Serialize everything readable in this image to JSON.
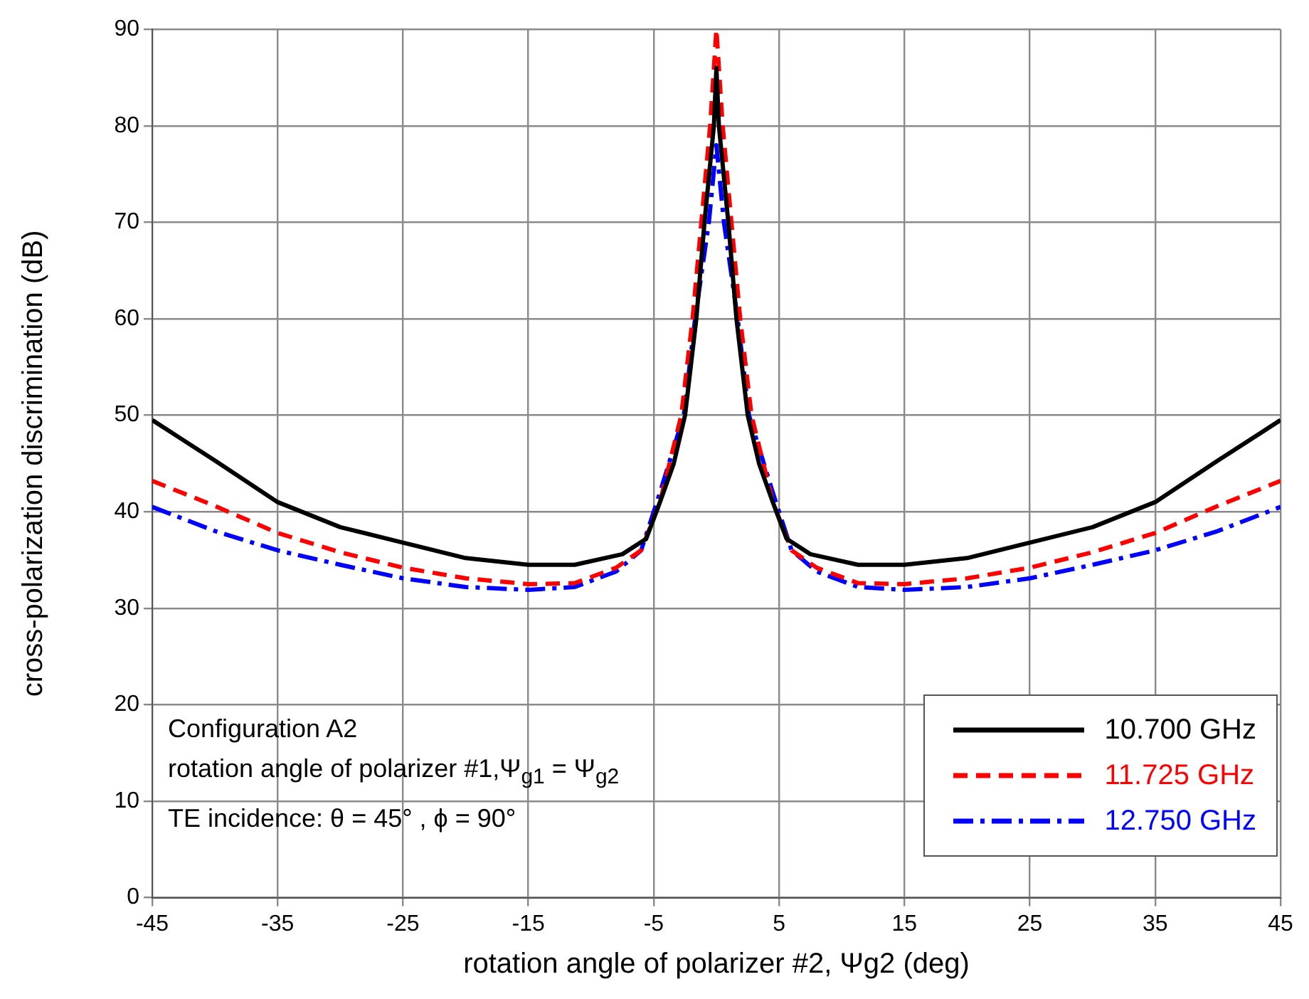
{
  "chart_data": {
    "type": "line",
    "xlabel": "rotation angle of polarizer #2, Ψg2 (deg)",
    "ylabel": "cross-polarization discrimination (dB)",
    "xlim": [
      -45,
      45
    ],
    "xticks": [
      -45,
      -35,
      -25,
      -15,
      -5,
      5,
      15,
      25,
      35,
      45
    ],
    "ylim": [
      0,
      90
    ],
    "yticks": [
      0,
      10,
      20,
      30,
      40,
      50,
      60,
      70,
      80,
      90
    ],
    "grid": true,
    "legend": "bottom right",
    "marker": "none",
    "annotations": [
      "Configuration A2",
      "rotation angle of polarizer #1,Ψ$_{g1}$ = Ψ$_{g2}$",
      "TE incidence: θ = 45° , ϕ = 90°"
    ],
    "series": [
      {
        "name": "10.700 GHz",
        "color": "#000000",
        "line_style": "solid",
        "x": [
          -45,
          -40,
          -35,
          -30,
          -25,
          -20,
          -15,
          -11.3,
          -7.5,
          -5.6,
          -4.5,
          -3.4,
          -2.5,
          -1.6,
          -0.95,
          -0.2,
          0,
          0.2,
          0.95,
          1.6,
          2.5,
          3.4,
          4.5,
          5.6,
          7.5,
          11.3,
          15,
          20,
          25,
          30,
          35,
          40,
          45
        ],
        "values": [
          49.5,
          45.3,
          41,
          38.4,
          36.8,
          35.2,
          34.5,
          34.5,
          35.6,
          37.2,
          41,
          45,
          50,
          60,
          70,
          80,
          86,
          80,
          70,
          60,
          50,
          45,
          41,
          37.2,
          35.6,
          34.5,
          34.5,
          35.2,
          36.8,
          38.4,
          41,
          45.3,
          49.5
        ]
      },
      {
        "name": "11.725 GHz",
        "color": "#ff0000",
        "line_style": "dashed",
        "x": [
          -45,
          -40,
          -35,
          -30,
          -25,
          -20,
          -15,
          -11.3,
          -8,
          -6,
          -4.5,
          -2.8,
          -1.9,
          -1.2,
          -0.5,
          0,
          0.5,
          1.2,
          1.9,
          2.8,
          4.5,
          6,
          8,
          11.3,
          15,
          20,
          25,
          30,
          35,
          40,
          45
        ],
        "values": [
          43.2,
          40.6,
          37.8,
          35.8,
          34.2,
          33.1,
          32.5,
          32.6,
          34.2,
          36,
          41,
          50,
          60,
          70,
          80,
          90,
          80,
          70,
          60,
          50,
          41,
          36,
          34.2,
          32.6,
          32.5,
          33.1,
          34.2,
          35.8,
          37.8,
          40.6,
          43.2
        ]
      },
      {
        "name": "12.750 GHz",
        "color": "#0000ff",
        "line_style": "dashdot",
        "x": [
          -45,
          -40,
          -35,
          -30,
          -25,
          -20,
          -15,
          -11.3,
          -8,
          -6,
          -4.5,
          -2.6,
          -1.7,
          -0.6,
          0,
          0.6,
          1.7,
          2.6,
          4.5,
          6,
          8,
          11.3,
          15,
          20,
          25,
          30,
          35,
          40,
          45
        ],
        "values": [
          40.5,
          38,
          36,
          34.5,
          33.1,
          32.2,
          31.9,
          32.2,
          33.8,
          36,
          42,
          50,
          60,
          70,
          78,
          70,
          60,
          50,
          42,
          36,
          33.8,
          32.2,
          31.9,
          32.2,
          33.1,
          34.5,
          36,
          38,
          40.5
        ]
      }
    ]
  }
}
